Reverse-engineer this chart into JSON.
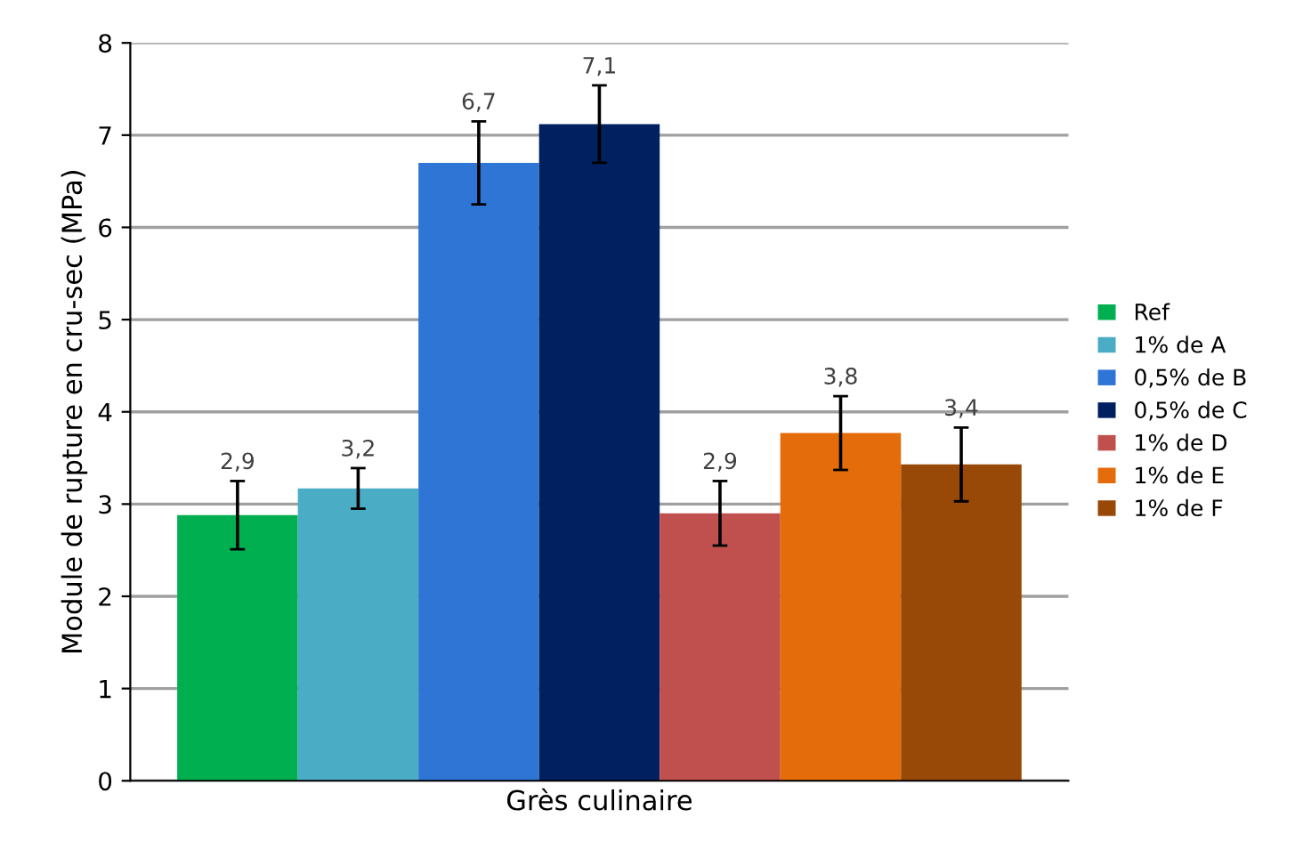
{
  "chart_data": {
    "type": "bar",
    "ylabel": "Module de rupture en cru-sec (MPa)",
    "categories": [
      "Grès culinaire"
    ],
    "ylim": [
      0,
      8
    ],
    "yticks": [
      0,
      1,
      2,
      3,
      4,
      5,
      6,
      7,
      8
    ],
    "grid": "y",
    "legend": "right",
    "series": [
      {
        "name": "Ref",
        "color": "#00b050",
        "values": [
          2.88
        ],
        "errors": [
          0.37
        ],
        "value_labels": [
          "2,9"
        ]
      },
      {
        "name": "1% de A",
        "color": "#4bacc6",
        "values": [
          3.17
        ],
        "errors": [
          0.22
        ],
        "value_labels": [
          "3,2"
        ]
      },
      {
        "name": "0,5% de B",
        "color": "#2e75d6",
        "values": [
          6.7
        ],
        "errors": [
          0.45
        ],
        "value_labels": [
          "6,7"
        ]
      },
      {
        "name": "0,5% de C",
        "color": "#002060",
        "values": [
          7.12
        ],
        "errors": [
          0.42
        ],
        "value_labels": [
          "7,1"
        ]
      },
      {
        "name": "1% de D",
        "color": "#c0504d",
        "values": [
          2.9
        ],
        "errors": [
          0.35
        ],
        "value_labels": [
          "2,9"
        ]
      },
      {
        "name": "1% de E",
        "color": "#e46c0a",
        "values": [
          3.77
        ],
        "errors": [
          0.4
        ],
        "value_labels": [
          "3,8"
        ]
      },
      {
        "name": "1% de F",
        "color": "#984807",
        "values": [
          3.43
        ],
        "errors": [
          0.4
        ],
        "value_labels": [
          "3,4"
        ]
      }
    ]
  }
}
